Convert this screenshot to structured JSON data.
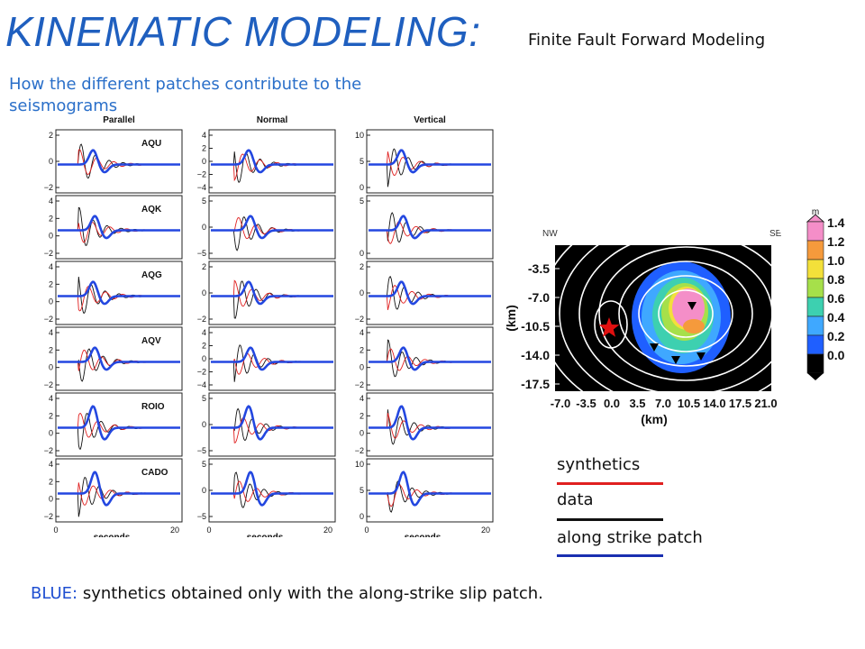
{
  "title": "KINEMATIC MODELING:",
  "subtitle_right": "Finite Fault Forward Modeling",
  "subtitle_left": "How the different patches contribute to the seismograms",
  "legend": {
    "synthetics": "synthetics",
    "data": "data",
    "patch": "along strike patch",
    "colors": {
      "synthetics": "#e02020",
      "data": "#111111",
      "patch": "#1a2fb0"
    }
  },
  "bottom_note": {
    "prefix": "BLUE:",
    "text": "synthetics obtained only with the along-strike slip patch."
  },
  "colors": {
    "title": "#1f5fbf",
    "red": "#e02020",
    "black": "#111111",
    "blue": "#2347e0"
  },
  "chart_data": [
    {
      "type": "line",
      "columns": [
        "Parallel",
        "Normal",
        "Vertical"
      ],
      "stations": [
        "AQU",
        "AQK",
        "AQG",
        "AQV",
        "ROIO",
        "CADO"
      ],
      "xlabel": "seconds",
      "xlim": [
        0,
        20
      ],
      "x_ticks": [
        "0",
        "20"
      ],
      "series": [
        {
          "name": "synthetics",
          "color": "#e02020"
        },
        {
          "name": "data",
          "color": "#111111"
        },
        {
          "name": "along strike patch",
          "color": "#2347e0"
        }
      ],
      "y_ticks": [
        [
          [
            "2",
            "0",
            "−2"
          ],
          [
            "4",
            "2",
            "0",
            "−2",
            "−4"
          ],
          [
            "10",
            "5",
            "0"
          ]
        ],
        [
          [
            "4",
            "2",
            "0",
            "−2"
          ],
          [
            "5",
            "0",
            "−5"
          ],
          [
            "5",
            "0"
          ]
        ],
        [
          [
            "4",
            "2",
            "0",
            "−2"
          ],
          [
            "2",
            "0",
            "−2"
          ],
          [
            "2",
            "0",
            "−2"
          ]
        ],
        [
          [
            "4",
            "2",
            "0",
            "−2"
          ],
          [
            "4",
            "2",
            "0",
            "−2",
            "−4"
          ],
          [
            "4",
            "2",
            "0",
            "−2"
          ]
        ],
        [
          [
            "4",
            "2",
            "0",
            "−2"
          ],
          [
            "5",
            "0",
            "−5"
          ],
          [
            "4",
            "2",
            "0",
            "−2"
          ]
        ],
        [
          [
            "4",
            "2",
            "0",
            "−2"
          ],
          [
            "5",
            "0",
            "−5"
          ],
          [
            "10",
            "5",
            "0"
          ]
        ]
      ]
    },
    {
      "type": "heatmap",
      "title": "",
      "xlabel": "(km)",
      "ylabel": "(km)",
      "x_ticks": [
        "-7.0",
        "-3.5",
        "0.0",
        "3.5",
        "7.0",
        "10.5",
        "14.0",
        "17.5",
        "21.0"
      ],
      "y_ticks": [
        "-3.5",
        "-7.0",
        "-10.5",
        "-14.0",
        "-17.5"
      ],
      "corner_labels": [
        "NW",
        "SE"
      ],
      "colorbar": {
        "unit": "m",
        "ticks": [
          "1.4",
          "1.2",
          "1.0",
          "0.8",
          "0.6",
          "0.4",
          "0.2",
          "0.0"
        ],
        "colors": [
          "#f48ec8",
          "#f59a3c",
          "#f3e03a",
          "#a6e04a",
          "#3dd0b0",
          "#3fa8ff",
          "#1f5fff",
          "#000000"
        ]
      }
    }
  ]
}
